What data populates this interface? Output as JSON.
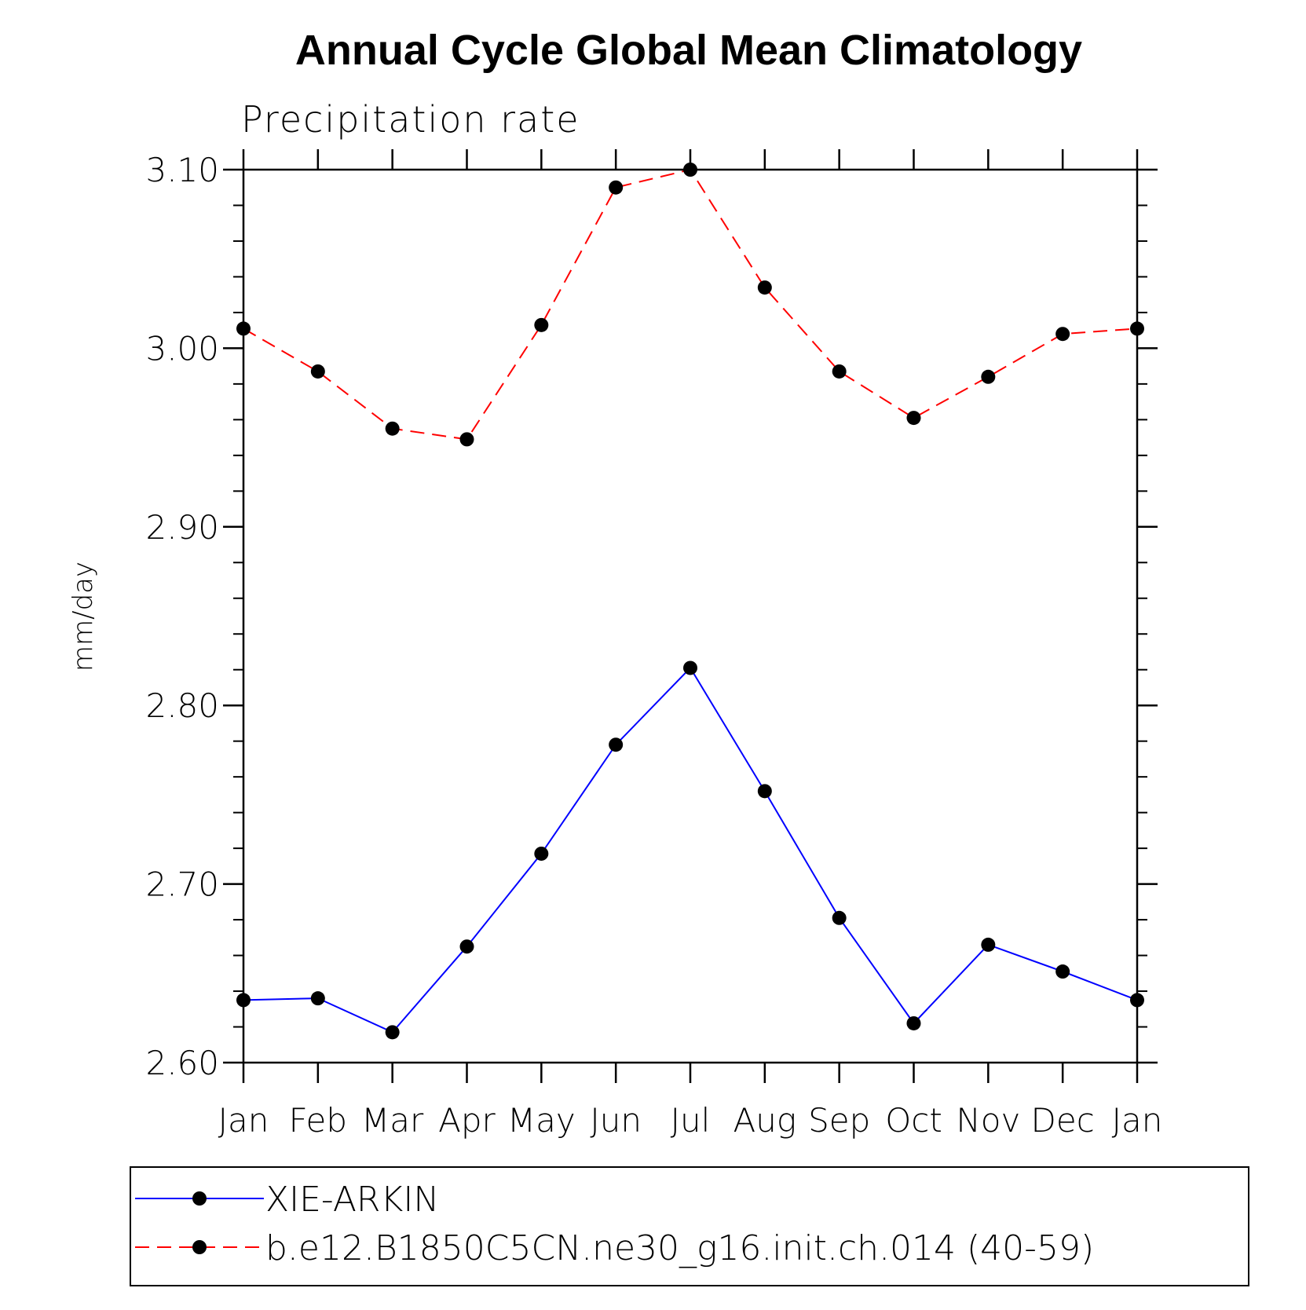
{
  "chart_data": {
    "type": "line",
    "title": "Annual Cycle Global Mean Climatology",
    "subtitle": "Precipitation rate",
    "xlabel": "",
    "ylabel": "mm/day",
    "categories": [
      "Jan",
      "Feb",
      "Mar",
      "Apr",
      "May",
      "Jun",
      "Jul",
      "Aug",
      "Sep",
      "Oct",
      "Nov",
      "Dec",
      "Jan"
    ],
    "ylim": [
      2.6,
      3.1
    ],
    "yticks": [
      "2.60",
      "2.70",
      "2.80",
      "2.90",
      "3.00",
      "3.10"
    ],
    "grid": false,
    "legend_position": "bottom",
    "series": [
      {
        "name": "XIE-ARKIN",
        "color": "#0000ff",
        "line_style": "solid",
        "marker": "filled-circle",
        "values": [
          2.635,
          2.636,
          2.617,
          2.665,
          2.717,
          2.778,
          2.821,
          2.752,
          2.681,
          2.622,
          2.666,
          2.651,
          2.635
        ]
      },
      {
        "name": "b.e12.B1850C5CN.ne30_g16.init.ch.014 (40-59)",
        "color": "#ff0000",
        "line_style": "dashed",
        "marker": "filled-circle",
        "values": [
          3.011,
          2.987,
          2.955,
          2.949,
          3.013,
          3.09,
          3.1,
          3.034,
          2.987,
          2.961,
          2.984,
          3.008,
          3.011
        ]
      }
    ]
  }
}
